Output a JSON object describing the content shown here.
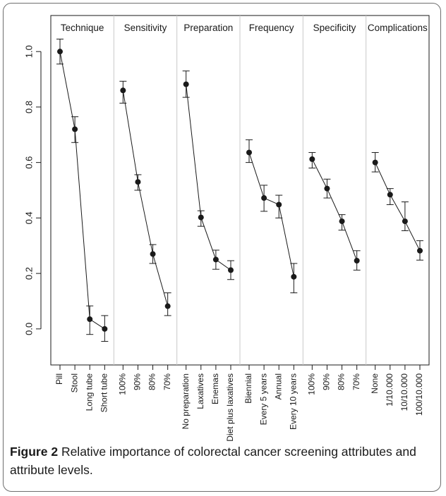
{
  "chart_data": {
    "type": "scatter",
    "ylim": [
      -0.13,
      1.13
    ],
    "yticks": [
      0.0,
      0.2,
      0.4,
      0.6,
      0.8,
      1.0
    ],
    "ytick_labels": [
      "0.0",
      "0.2",
      "0.4",
      "0.6",
      "0.8",
      "1.0"
    ],
    "grid": false,
    "legend": "none",
    "panels": [
      {
        "name": "Technique",
        "categories": [
          "Pill",
          "Stool",
          "Long tube",
          "Short tube"
        ],
        "values": [
          1.0,
          0.72,
          0.035,
          0.0
        ],
        "lower": [
          0.955,
          0.672,
          -0.02,
          -0.045
        ],
        "upper": [
          1.045,
          0.765,
          0.083,
          0.048
        ]
      },
      {
        "name": "Sensitivity",
        "categories": [
          "100%",
          "90%",
          "80%",
          "70%"
        ],
        "values": [
          0.86,
          0.53,
          0.27,
          0.082
        ],
        "lower": [
          0.814,
          0.5,
          0.236,
          0.048
        ],
        "upper": [
          0.893,
          0.556,
          0.304,
          0.13
        ]
      },
      {
        "name": "Preparation",
        "categories": [
          "No preparation",
          "Laxatives",
          "Enemas",
          "Diet plus laxatives"
        ],
        "values": [
          0.882,
          0.402,
          0.25,
          0.212
        ],
        "lower": [
          0.835,
          0.37,
          0.215,
          0.178
        ],
        "upper": [
          0.93,
          0.426,
          0.284,
          0.246
        ]
      },
      {
        "name": "Frequency",
        "categories": [
          "Biennial",
          "Every 5 years",
          "Annual",
          "Every 10 years"
        ],
        "values": [
          0.636,
          0.472,
          0.448,
          0.188
        ],
        "lower": [
          0.6,
          0.424,
          0.4,
          0.13
        ],
        "upper": [
          0.682,
          0.518,
          0.482,
          0.236
        ]
      },
      {
        "name": "Specificity",
        "categories": [
          "100%",
          "90%",
          "80%",
          "70%"
        ],
        "values": [
          0.612,
          0.506,
          0.388,
          0.246
        ],
        "lower": [
          0.58,
          0.472,
          0.356,
          0.212
        ],
        "upper": [
          0.636,
          0.54,
          0.412,
          0.282
        ]
      },
      {
        "name": "Complications",
        "categories": [
          "None",
          "1/10.000",
          "10/10.000",
          "100/10.000"
        ],
        "values": [
          0.6,
          0.484,
          0.388,
          0.282
        ],
        "lower": [
          0.566,
          0.448,
          0.354,
          0.248
        ],
        "upper": [
          0.636,
          0.506,
          0.458,
          0.318
        ]
      }
    ]
  },
  "caption": {
    "label": "Figure 2",
    "text": " Relative importance of colorectal cancer screening attributes and attribute levels."
  },
  "colors": {
    "ink": "#1a1a1a",
    "divider": "#c8c8c8",
    "frame": "#6e6e6e"
  }
}
